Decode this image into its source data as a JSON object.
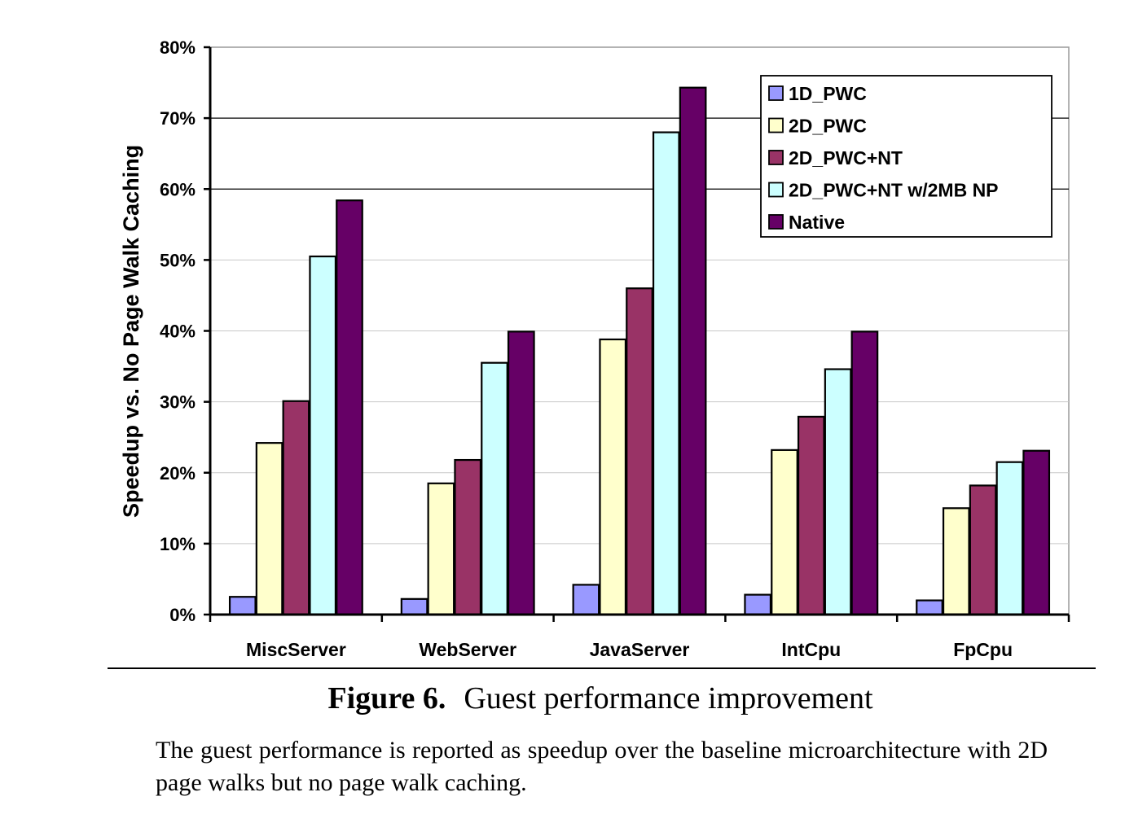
{
  "chart_data": {
    "type": "bar",
    "ylabel": "Speedup vs. No Page Walk Caching",
    "xlabel": "",
    "ylim": [
      0,
      80
    ],
    "yticks": [
      "0%",
      "10%",
      "20%",
      "30%",
      "40%",
      "50%",
      "60%",
      "70%",
      "80%"
    ],
    "grid": true,
    "legend_position": "top-right",
    "categories": [
      "MiscServer",
      "WebServer",
      "JavaServer",
      "IntCpu",
      "FpCpu"
    ],
    "series": [
      {
        "name": "1D_PWC",
        "color": "#9999ff",
        "values": [
          2.5,
          2.2,
          4.2,
          2.8,
          2.0
        ]
      },
      {
        "name": "2D_PWC",
        "color": "#ffffcc",
        "values": [
          24.2,
          18.5,
          38.8,
          23.2,
          15.0
        ]
      },
      {
        "name": "2D_PWC+NT",
        "color": "#993366",
        "values": [
          30.1,
          21.8,
          46.0,
          27.9,
          18.2
        ]
      },
      {
        "name": "2D_PWC+NT w/2MB NP",
        "color": "#ccffff",
        "values": [
          50.5,
          35.5,
          68.0,
          34.6,
          21.5
        ]
      },
      {
        "name": "Native",
        "color": "#660066",
        "values": [
          58.4,
          39.9,
          74.3,
          39.9,
          23.1
        ]
      }
    ]
  },
  "caption": {
    "figure_number": "Figure 6.",
    "title": "Guest performance improvement",
    "body": "The guest performance is reported as speedup over the baseline microarchitecture with 2D page walks but no page walk caching."
  }
}
